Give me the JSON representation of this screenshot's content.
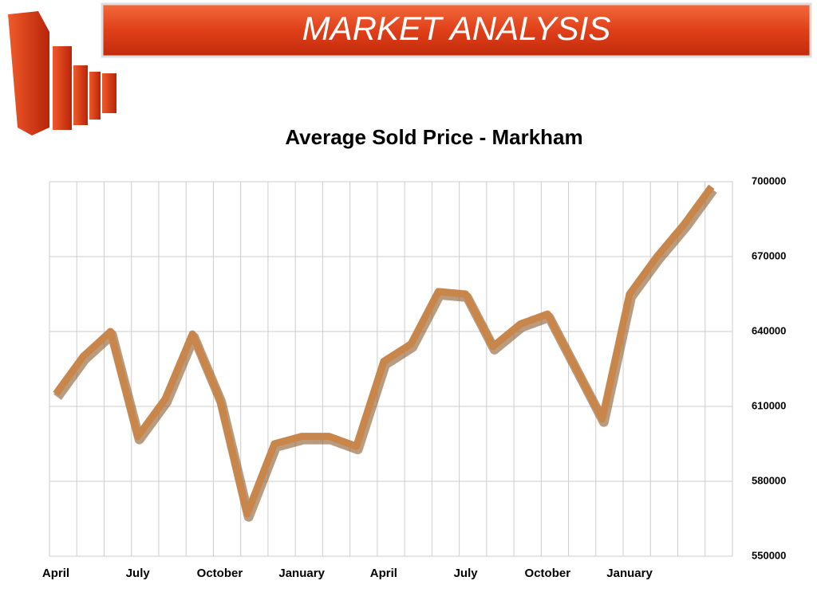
{
  "header": {
    "title": "MARKET ANALYSIS"
  },
  "chart_data": {
    "type": "line",
    "title": "Average Sold Price - Markham",
    "categories": [
      "April",
      null,
      null,
      "July",
      null,
      null,
      "October",
      null,
      null,
      "January",
      null,
      null,
      "April",
      null,
      null,
      "July",
      null,
      null,
      "October",
      null,
      null,
      "January",
      null,
      null,
      null
    ],
    "values": [
      615000,
      630000,
      640000,
      598000,
      613000,
      639000,
      613000,
      567000,
      595000,
      598000,
      598000,
      594000,
      628000,
      635000,
      656000,
      655000,
      634000,
      643000,
      647000,
      626000,
      605000,
      655000,
      670000,
      683000,
      698000
    ],
    "color": "#c8864a",
    "ylim": [
      550000,
      700000
    ],
    "yticks": [
      550000,
      580000,
      610000,
      640000,
      670000,
      700000
    ],
    "grid": true
  }
}
